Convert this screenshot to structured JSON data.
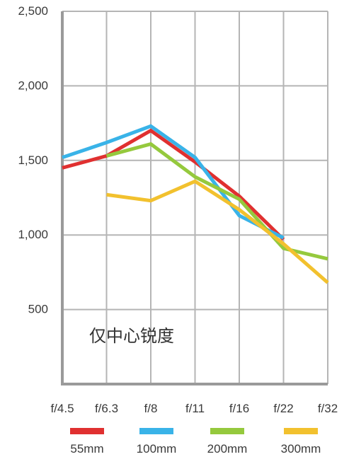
{
  "chart_data": {
    "type": "line",
    "categories": [
      "f/4.5",
      "f/6.3",
      "f/8",
      "f/11",
      "f/16",
      "f/22",
      "f/32"
    ],
    "ylim": [
      0,
      2500
    ],
    "yticks": [
      500,
      1000,
      1500,
      2000,
      2500
    ],
    "ytick_labels": [
      "500",
      "1,000",
      "1,500",
      "2,000",
      "2,500"
    ],
    "grid": true,
    "legend_position": "bottom",
    "annotation": "仅中心锐度",
    "series": [
      {
        "name": "55mm",
        "color": "#e03030",
        "values": [
          1450,
          1530,
          1700,
          1490,
          1260,
          970,
          null
        ]
      },
      {
        "name": "100mm",
        "color": "#39b3e8",
        "values": [
          1520,
          1620,
          1730,
          1520,
          1130,
          980,
          null
        ]
      },
      {
        "name": "200mm",
        "color": "#95c93d",
        "values": [
          null,
          1530,
          1610,
          1390,
          1240,
          910,
          840
        ]
      },
      {
        "name": "300mm",
        "color": "#f2c12e",
        "values": [
          null,
          1270,
          1230,
          1360,
          1170,
          940,
          680
        ]
      }
    ]
  }
}
